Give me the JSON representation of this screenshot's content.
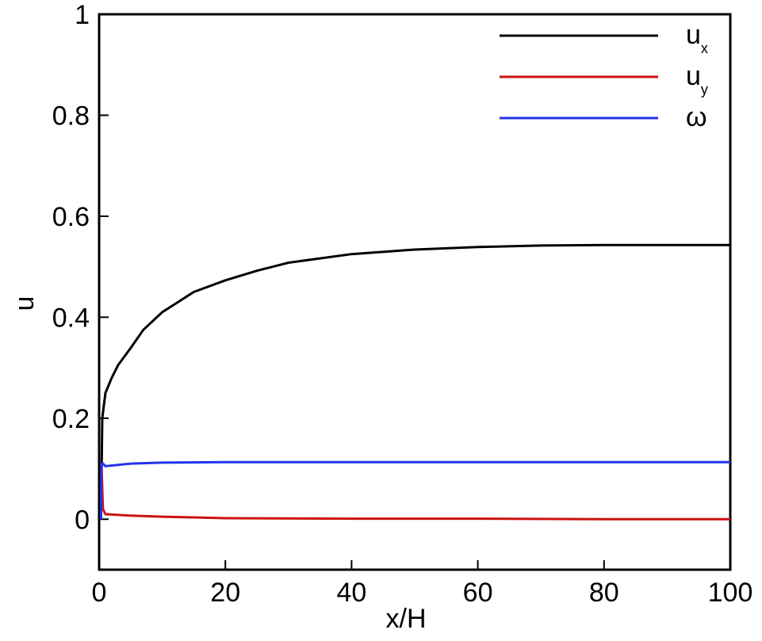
{
  "chart_data": {
    "type": "line",
    "x_label": "x/H",
    "y_label": "u",
    "xlim": [
      0,
      100
    ],
    "xticks": [
      0,
      20,
      40,
      60,
      80,
      100
    ],
    "ylim": [
      -0.1,
      1
    ],
    "yticks": [
      0,
      0.2,
      0.4,
      0.6,
      0.8,
      1
    ],
    "legend": "top-right",
    "series": [
      {
        "name": "ux",
        "color": "#000000",
        "x": [
          0.3,
          0.5,
          1,
          2,
          3,
          5,
          7,
          10,
          15,
          20,
          25,
          30,
          40,
          50,
          60,
          70,
          80,
          90,
          100
        ],
        "values": [
          0,
          0.2,
          0.25,
          0.28,
          0.305,
          0.339,
          0.375,
          0.41,
          0.45,
          0.473,
          0.492,
          0.508,
          0.525,
          0.534,
          0.539,
          0.542,
          0.543,
          0.543,
          0.543
        ]
      },
      {
        "name": "uy",
        "color": "#cc1111",
        "x": [
          0.3,
          0.4,
          0.6,
          1,
          5,
          10,
          20,
          40,
          60,
          80,
          100
        ],
        "values": [
          0.11,
          0.1,
          0.02,
          0.01,
          0.007,
          0.005,
          0.002,
          0.001,
          0.001,
          0,
          0
        ]
      },
      {
        "name": "ω",
        "color": "#2233ee",
        "x": [
          0.3,
          0.35,
          0.6,
          1,
          5,
          10,
          20,
          40,
          60,
          80,
          100
        ],
        "values": [
          0,
          0.11,
          0.11,
          0.105,
          0.11,
          0.112,
          0.113,
          0.113,
          0.113,
          0.113,
          0.113
        ]
      }
    ]
  }
}
